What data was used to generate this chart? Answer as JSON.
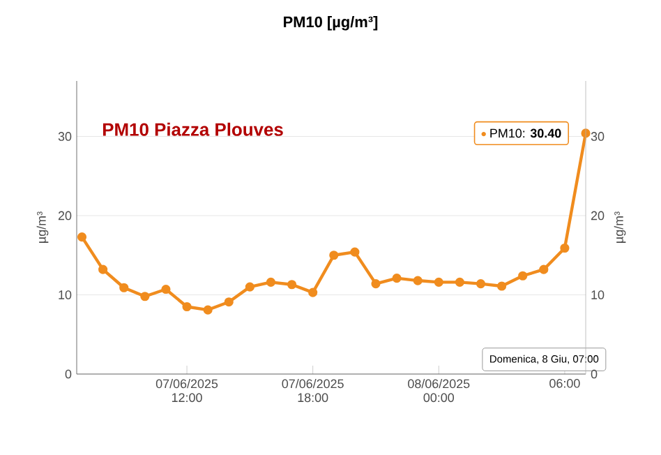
{
  "chart_data": {
    "type": "line",
    "title": "PM10 [µg/m³]",
    "ylabel": "µg/m³",
    "y2label": "µg/m³",
    "x": [
      "2025-06-07T07:00",
      "2025-06-07T08:00",
      "2025-06-07T09:00",
      "2025-06-07T10:00",
      "2025-06-07T11:00",
      "2025-06-07T12:00",
      "2025-06-07T13:00",
      "2025-06-07T14:00",
      "2025-06-07T15:00",
      "2025-06-07T16:00",
      "2025-06-07T17:00",
      "2025-06-07T18:00",
      "2025-06-07T19:00",
      "2025-06-07T20:00",
      "2025-06-07T21:00",
      "2025-06-07T22:00",
      "2025-06-07T23:00",
      "2025-06-08T00:00",
      "2025-06-08T01:00",
      "2025-06-08T02:00",
      "2025-06-08T03:00",
      "2025-06-08T04:00",
      "2025-06-08T05:00",
      "2025-06-08T06:00",
      "2025-06-08T07:00"
    ],
    "series": [
      {
        "color": "#f08c1e",
        "values": [
          17.3,
          13.2,
          10.9,
          9.8,
          10.7,
          8.5,
          8.1,
          9.1,
          11.0,
          11.6,
          11.3,
          10.3,
          15.0,
          15.4,
          11.4,
          12.1,
          11.8,
          11.6,
          11.6,
          11.4,
          11.1,
          12.4,
          13.2,
          15.9,
          30.4
        ]
      }
    ],
    "xlim": [
      "2025-06-07T06:45",
      "2025-06-08T07:00"
    ],
    "xticks": [
      {
        "value": "2025-06-07T12:00",
        "label": "07/06/2025 12:00"
      },
      {
        "value": "2025-06-07T18:00",
        "label": "07/06/2025 18:00"
      },
      {
        "value": "2025-06-08T00:00",
        "label": "08/06/2025 00:00"
      },
      {
        "value": "2025-06-08T06:00",
        "label": "06:00"
      }
    ],
    "ylim": [
      0,
      37
    ],
    "yticks": [
      0,
      10,
      20,
      30
    ],
    "y2lim": [
      0,
      37
    ],
    "y2ticks": [
      0,
      10,
      20,
      30
    ],
    "grid": "y",
    "marker": "circle",
    "line_style": "solid",
    "annotations": [
      {
        "text": "PM10 Piazza Plouves"
      },
      {
        "text": "PM10: **30.40**",
        "x": "2025-06-08T07:00",
        "y": 30.4
      },
      "Domenica, 8 Giu, 07:00"
    ]
  }
}
